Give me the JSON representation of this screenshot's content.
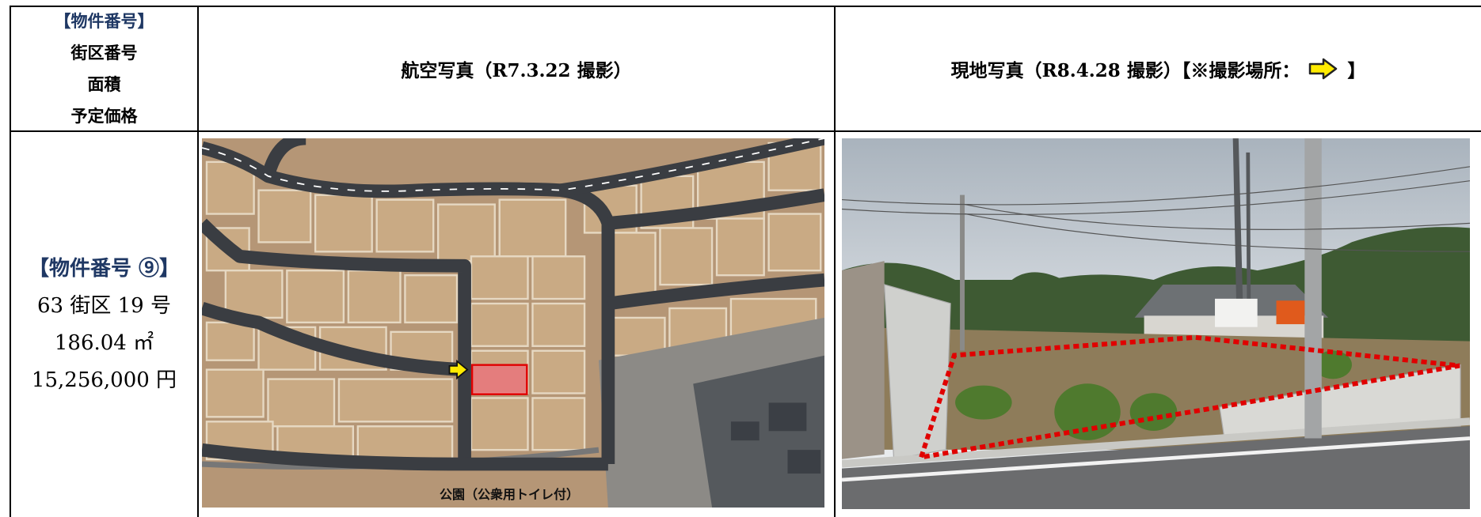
{
  "header": {
    "column1": [
      "【物件番号】",
      "街区番号",
      "面積",
      "予定価格"
    ],
    "column2": "航空写真（R7.3.22 撮影）",
    "column3": {
      "before_icon": "現地写真（R8.4.28 撮影）【※撮影場所：",
      "after_icon": "】"
    }
  },
  "row": {
    "column1": [
      "【物件番号 ⑨】",
      "63 街区 19 号",
      "186.04 ㎡",
      "15,256,000 円"
    ],
    "aerial_caption": "公園（公衆用トイレ付）"
  }
}
